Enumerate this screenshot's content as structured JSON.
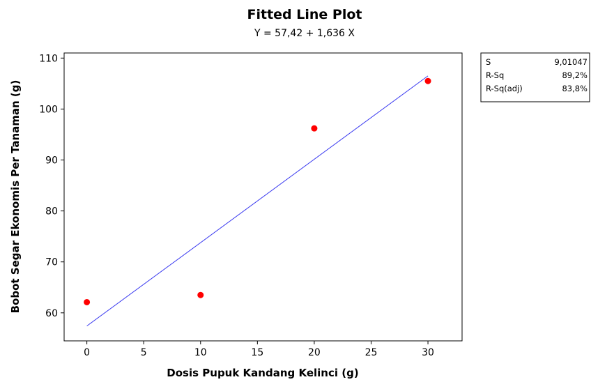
{
  "chart_data": {
    "type": "scatter",
    "title": "Fitted Line Plot",
    "subtitle": "Y =  57,42 + 1,636 X",
    "xlabel": "Dosis Pupuk Kandang Kelinci (g)",
    "ylabel": "Bobot Segar Ekonomis Per Tanaman (g)",
    "xlim": [
      -2,
      33
    ],
    "ylim": [
      54.5,
      111
    ],
    "x_ticks": [
      0,
      5,
      10,
      15,
      20,
      25,
      30
    ],
    "y_ticks": [
      60,
      70,
      80,
      90,
      100,
      110
    ],
    "x_tick_labels": [
      "0",
      "5",
      "10",
      "15",
      "20",
      "25",
      "30"
    ],
    "y_tick_labels": [
      "60",
      "70",
      "80",
      "90",
      "100",
      "110"
    ],
    "grid": false,
    "points": [
      {
        "x": 0,
        "y": 62.1
      },
      {
        "x": 10,
        "y": 63.5
      },
      {
        "x": 20,
        "y": 96.2
      },
      {
        "x": 30,
        "y": 105.5
      }
    ],
    "fit_line": {
      "intercept": 57.42,
      "slope": 1.636,
      "x_range": [
        0,
        30
      ]
    },
    "point_color": "#ff0000",
    "line_color": "#3a3af0",
    "stats": [
      {
        "label": "S",
        "value": "9,01047"
      },
      {
        "label": "R-Sq",
        "value": "89,2%"
      },
      {
        "label": "R-Sq(adj)",
        "value": "83,8%"
      }
    ]
  }
}
